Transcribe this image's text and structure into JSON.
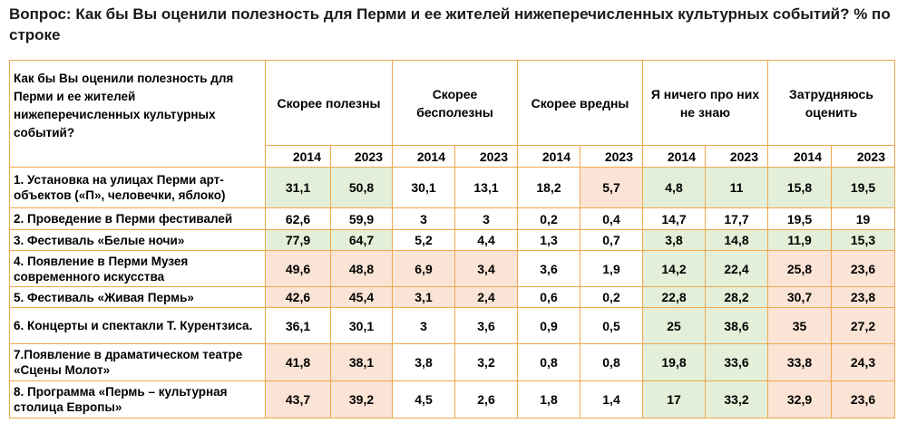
{
  "title": "Вопрос: Как бы Вы оценили полезность для Перми и ее жителей нижеперечисленных культурных событий? % по строке",
  "table": {
    "question_header": "Как бы Вы оценили полезность для Перми и ее жителей нижеперечисленных культурных событий?",
    "groups": [
      "Скорее полезны",
      "Скорее бесполезны",
      "Скорее вредны",
      "Я ничего про них не знаю",
      "Затрудняюсь оценить"
    ],
    "years": [
      "2014",
      "2023"
    ],
    "colors": {
      "green": "#e3efd9",
      "pink": "#fbe4d5",
      "white": "#ffffff",
      "border": "#f0a84c"
    },
    "rows": [
      {
        "label": "1. Установка на улицах Перми арт-объектов («П», человечки, яблоко)",
        "values": [
          "31,1",
          "50,8",
          "30,1",
          "13,1",
          "18,2",
          "5,7",
          "4,8",
          "11",
          "15,8",
          "19,5"
        ]
      },
      {
        "label": "2. Проведение в Перми фестивалей",
        "values": [
          "62,6",
          "59,9",
          "3",
          "3",
          "0,2",
          "0,4",
          "14,7",
          "17,7",
          "19,5",
          "19"
        ]
      },
      {
        "label": "3. Фестиваль «Белые ночи»",
        "values": [
          "77,9",
          "64,7",
          "5,2",
          "4,4",
          "1,3",
          "0,7",
          "3,8",
          "14,8",
          "11,9",
          "15,3"
        ]
      },
      {
        "label": "4. Появление в Перми Музея современного искусства",
        "values": [
          "49,6",
          "48,8",
          "6,9",
          "3,4",
          "3,6",
          "1,9",
          "14,2",
          "22,4",
          "25,8",
          "23,6"
        ]
      },
      {
        "label": "5. Фестиваль «Живая Пермь»",
        "values": [
          "42,6",
          "45,4",
          "3,1",
          "2,4",
          "0,6",
          "0,2",
          "22,8",
          "28,2",
          "30,7",
          "23,8"
        ]
      },
      {
        "label": "6. Концерты и спектакли Т. Курентзиса.",
        "values": [
          "36,1",
          "30,1",
          "3",
          "3,6",
          "0,9",
          "0,5",
          "25",
          "38,6",
          "35",
          "27,2"
        ]
      },
      {
        "label": "7.Появление в драматическом театре «Сцены Молот»",
        "values": [
          "41,8",
          "38,1",
          "3,8",
          "3,2",
          "0,8",
          "0,8",
          "19,8",
          "33,6",
          "33,8",
          "24,3"
        ]
      },
      {
        "label": "8. Программа «Пермь – культурная столица Европы»",
        "values": [
          "43,7",
          "39,2",
          "4,5",
          "2,6",
          "1,8",
          "1,4",
          "17",
          "33,2",
          "32,9",
          "23,6"
        ]
      }
    ]
  }
}
